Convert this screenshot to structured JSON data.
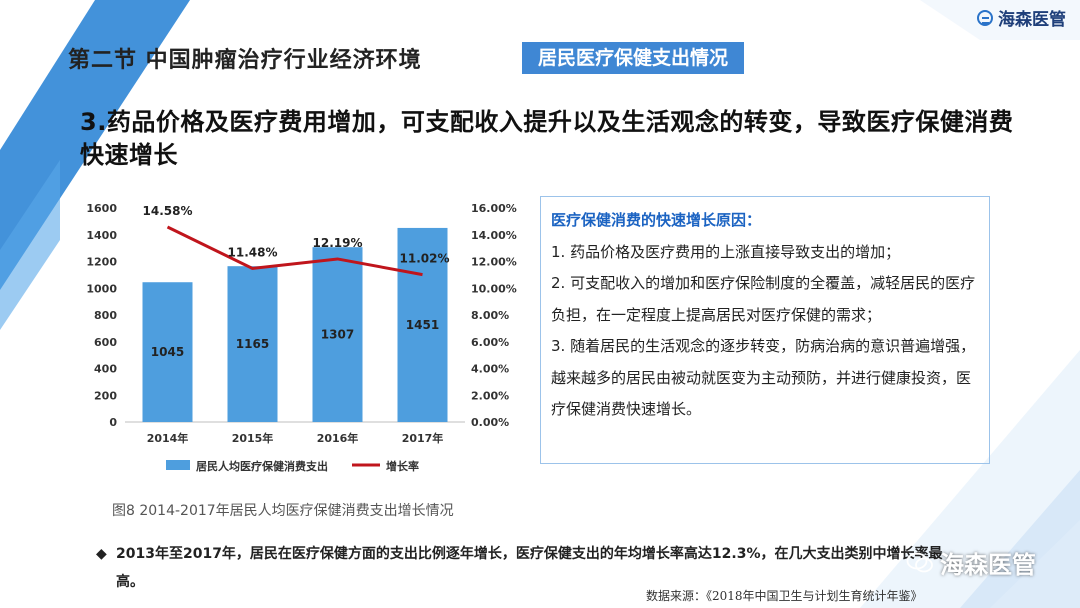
{
  "brand": {
    "name": "海森医管",
    "logo_icon": "haisen-logo-icon"
  },
  "header": {
    "section_title": "第二节  中国肿瘤治疗行业经济环境",
    "section_tag": "居民医疗保健支出情况"
  },
  "headline": "3.药品价格及医疗费用增加，可支配收入提升以及生活观念的转变，导致医疗保健消费快速增长",
  "chart_data": {
    "type": "bar",
    "categories": [
      "2014年",
      "2015年",
      "2016年",
      "2017年"
    ],
    "series": [
      {
        "name": "居民人均医疗保健消费支出",
        "type": "bar",
        "axis": "left",
        "values": [
          1045,
          1165,
          1307,
          1451
        ],
        "labels": [
          "1045",
          "1165",
          "1307",
          "1451"
        ],
        "color": "#4e9ede"
      },
      {
        "name": "增长率",
        "type": "line",
        "axis": "right",
        "values": [
          14.58,
          11.48,
          12.19,
          11.02
        ],
        "labels": [
          "14.58%",
          "11.48%",
          "12.19%",
          "11.02%"
        ],
        "color": "#c0151c"
      }
    ],
    "ylim_left": [
      0,
      1600
    ],
    "yticks_left": [
      "0",
      "200",
      "400",
      "600",
      "800",
      "1000",
      "1200",
      "1400",
      "1600"
    ],
    "ylim_right": [
      0,
      16
    ],
    "yticks_right": [
      "0.00%",
      "2.00%",
      "4.00%",
      "6.00%",
      "8.00%",
      "10.00%",
      "12.00%",
      "14.00%",
      "16.00%"
    ],
    "grid": false,
    "legend": "bottom"
  },
  "caption": "图8 2014-2017年居民人均医疗保健消费支出增长情况",
  "reasons": {
    "title": "医疗保健消费的快速增长原因：",
    "items": [
      "1. 药品价格及医疗费用的上涨直接导致支出的增加；",
      "2. 可支配收入的增加和医疗保险制度的全覆盖，减轻居民的医疗负担，在一定程度上提高居民对医疗保健的需求；",
      "3. 随着居民的生活观念的逐步转变，防病治病的意识普遍增强，越来越多的居民由被动就医变为主动预防，并进行健康投资，医疗保健消费快速增长。"
    ]
  },
  "bottom_note": "2013年至2017年，居民在医疗保健方面的支出比例逐年增长，医疗保健支出的年均增长率高达12.3%，在几大支出类别中增长率最高。",
  "source": "数据来源：《2018年中国卫生与计划生育统计年鉴》",
  "watermark": {
    "text": "海森医管",
    "icon": "wechat-icon"
  },
  "colors": {
    "accent_blue": "#3f87d4",
    "bar_blue": "#4e9ede",
    "line_red": "#c0151c",
    "text_blue": "#1b63c2"
  }
}
